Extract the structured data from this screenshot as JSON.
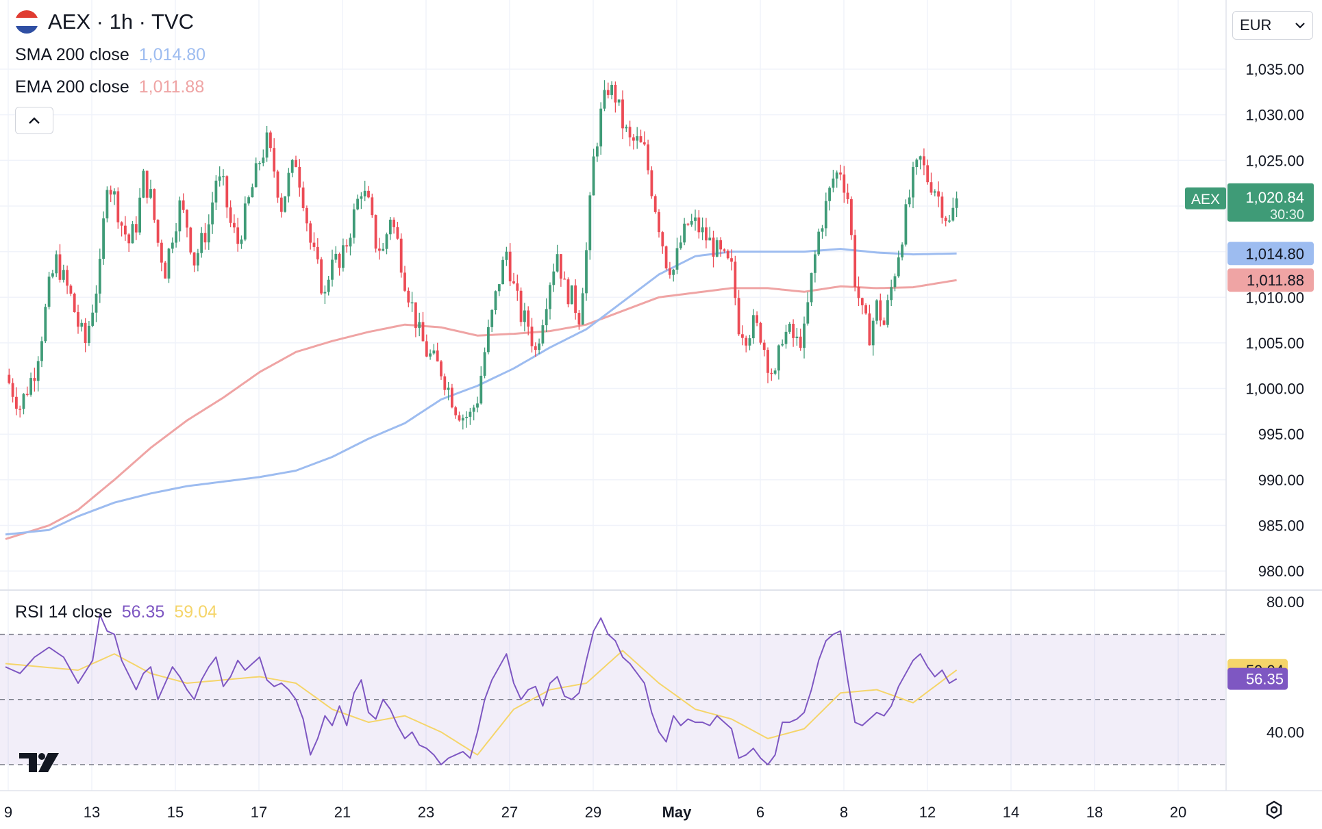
{
  "header": {
    "symbol_title": "AEX · 1h · TVC",
    "flag_colors": [
      "#e03c31",
      "#ffffff",
      "#2f4fa3"
    ],
    "sma": {
      "label": "SMA 200 close",
      "value": "1,014.80",
      "color": "#9dbcf0"
    },
    "ema": {
      "label": "EMA 200 close",
      "value": "1,011.88",
      "color": "#efa4a4"
    },
    "collapse_icon": "chevron-up-icon"
  },
  "currency": {
    "value": "EUR",
    "icon": "chevron-down-icon"
  },
  "rsi": {
    "label": "RSI 14 close",
    "value": "56.35",
    "ma_value": "59.04",
    "color": "#7e57c2",
    "ma_color": "#f5d56a"
  },
  "price_badges": {
    "symbol": "AEX",
    "last": "1,020.84",
    "countdown": "30:30",
    "sma": "1,014.80",
    "ema": "1,011.88",
    "up_color": "#3f9b77",
    "down_color": "#ec4b55"
  },
  "logo": "tradingview-logo",
  "settings_icon": "settings-gear-icon",
  "chart_data": [
    {
      "type": "candlestick",
      "title": "AEX · 1h · TVC",
      "y_ticks": [
        "1,035.00",
        "1,030.00",
        "1,025.00",
        "1,020.00",
        "1,015.00",
        "1,010.00",
        "1,005.00",
        "1,000.00",
        "995.00",
        "990.00",
        "985.00",
        "980.00"
      ],
      "ylim": [
        979,
        1036.5
      ],
      "x_ticks": [
        "9",
        "13",
        "15",
        "17",
        "21",
        "23",
        "27",
        "29",
        "May",
        "6",
        "8",
        "12",
        "14",
        "18",
        "20"
      ],
      "close_path": [
        [
          0,
          1001.5
        ],
        [
          4,
          998
        ],
        [
          8,
          1002
        ],
        [
          10,
          1006
        ],
        [
          12,
          1011
        ],
        [
          14,
          1014
        ],
        [
          16,
          1012
        ],
        [
          18,
          1010
        ],
        [
          20,
          1007
        ],
        [
          22,
          1005
        ],
        [
          24,
          1009
        ],
        [
          26,
          1013
        ],
        [
          28,
          1023
        ],
        [
          30,
          1021
        ],
        [
          32,
          1018
        ],
        [
          34,
          1016
        ],
        [
          36,
          1018
        ],
        [
          38,
          1023
        ],
        [
          40,
          1021
        ],
        [
          42,
          1016
        ],
        [
          44,
          1013
        ],
        [
          46,
          1017
        ],
        [
          48,
          1020
        ],
        [
          50,
          1018
        ],
        [
          52,
          1014
        ],
        [
          54,
          1016
        ],
        [
          56,
          1018
        ],
        [
          58,
          1023
        ],
        [
          60,
          1022
        ],
        [
          62,
          1018
        ],
        [
          64,
          1016
        ],
        [
          66,
          1019
        ],
        [
          68,
          1022
        ],
        [
          70,
          1025
        ],
        [
          72,
          1027
        ],
        [
          74,
          1024
        ],
        [
          76,
          1020
        ],
        [
          78,
          1023
        ],
        [
          80,
          1025
        ],
        [
          82,
          1021
        ],
        [
          84,
          1016
        ],
        [
          86,
          1013
        ],
        [
          88,
          1010
        ],
        [
          90,
          1015
        ],
        [
          92,
          1013
        ],
        [
          94,
          1016
        ],
        [
          96,
          1019
        ],
        [
          98,
          1022
        ],
        [
          100,
          1020
        ],
        [
          102,
          1016
        ],
        [
          104,
          1015
        ],
        [
          106,
          1019
        ],
        [
          108,
          1016
        ],
        [
          110,
          1012
        ],
        [
          112,
          1009
        ],
        [
          114,
          1006
        ],
        [
          116,
          1004
        ],
        [
          118,
          1003
        ],
        [
          120,
          1002
        ],
        [
          122,
          1000
        ],
        [
          124,
          998
        ],
        [
          126,
          997
        ],
        [
          128,
          997
        ],
        [
          130,
          999
        ],
        [
          132,
          1004
        ],
        [
          134,
          1008
        ],
        [
          136,
          1012
        ],
        [
          138,
          1015
        ],
        [
          140,
          1011
        ],
        [
          142,
          1008
        ],
        [
          144,
          1007
        ],
        [
          146,
          1004
        ],
        [
          148,
          1008
        ],
        [
          150,
          1012
        ],
        [
          152,
          1015
        ],
        [
          154,
          1011
        ],
        [
          156,
          1010
        ],
        [
          158,
          1008
        ],
        [
          160,
          1015
        ],
        [
          162,
          1025
        ],
        [
          164,
          1030
        ],
        [
          166,
          1033
        ],
        [
          168,
          1032
        ],
        [
          170,
          1029
        ],
        [
          172,
          1027
        ],
        [
          174,
          1027
        ],
        [
          176,
          1026
        ],
        [
          178,
          1022
        ],
        [
          180,
          1018
        ],
        [
          182,
          1014
        ],
        [
          184,
          1013
        ],
        [
          186,
          1016
        ],
        [
          188,
          1018
        ],
        [
          190,
          1018
        ],
        [
          192,
          1017
        ],
        [
          194,
          1016
        ],
        [
          196,
          1015
        ],
        [
          198,
          1014
        ],
        [
          200,
          1013
        ],
        [
          202,
          1007
        ],
        [
          204,
          1006
        ],
        [
          206,
          1007
        ],
        [
          208,
          1006
        ],
        [
          210,
          1003
        ],
        [
          212,
          1001
        ],
        [
          214,
          1006
        ],
        [
          216,
          1006
        ],
        [
          218,
          1005
        ],
        [
          220,
          1006
        ],
        [
          222,
          1012
        ],
        [
          224,
          1017
        ],
        [
          226,
          1020
        ],
        [
          228,
          1023
        ],
        [
          230,
          1024
        ],
        [
          232,
          1021
        ],
        [
          234,
          1012
        ],
        [
          236,
          1008
        ],
        [
          238,
          1006
        ],
        [
          240,
          1009
        ],
        [
          242,
          1007
        ],
        [
          244,
          1011
        ],
        [
          246,
          1015
        ],
        [
          248,
          1019
        ],
        [
          250,
          1023
        ],
        [
          252,
          1025
        ],
        [
          254,
          1023
        ],
        [
          256,
          1022
        ],
        [
          258,
          1020
        ],
        [
          260,
          1018
        ],
        [
          262,
          1020.84
        ]
      ],
      "sma_200": [
        [
          0,
          984
        ],
        [
          12,
          984.5
        ],
        [
          20,
          986
        ],
        [
          30,
          987.5
        ],
        [
          40,
          988.5
        ],
        [
          50,
          989.3
        ],
        [
          60,
          989.8
        ],
        [
          70,
          990.3
        ],
        [
          80,
          991
        ],
        [
          90,
          992.5
        ],
        [
          100,
          994.5
        ],
        [
          110,
          996.2
        ],
        [
          120,
          998.8
        ],
        [
          130,
          1000.3
        ],
        [
          140,
          1002.2
        ],
        [
          150,
          1004.5
        ],
        [
          160,
          1006.5
        ],
        [
          170,
          1009.5
        ],
        [
          180,
          1012.5
        ],
        [
          190,
          1014.5
        ],
        [
          200,
          1015
        ],
        [
          210,
          1015
        ],
        [
          220,
          1015
        ],
        [
          230,
          1015.3
        ],
        [
          240,
          1014.9
        ],
        [
          250,
          1014.7
        ],
        [
          262,
          1014.8
        ]
      ],
      "ema_200": [
        [
          0,
          983.5
        ],
        [
          12,
          985
        ],
        [
          20,
          986.7
        ],
        [
          30,
          990
        ],
        [
          40,
          993.5
        ],
        [
          50,
          996.5
        ],
        [
          60,
          999
        ],
        [
          70,
          1001.8
        ],
        [
          80,
          1004
        ],
        [
          90,
          1005.2
        ],
        [
          100,
          1006.2
        ],
        [
          110,
          1007
        ],
        [
          120,
          1006.7
        ],
        [
          130,
          1005.8
        ],
        [
          140,
          1006
        ],
        [
          150,
          1006.3
        ],
        [
          160,
          1007
        ],
        [
          170,
          1008.5
        ],
        [
          180,
          1010
        ],
        [
          190,
          1010.5
        ],
        [
          200,
          1011
        ],
        [
          210,
          1011
        ],
        [
          220,
          1010.6
        ],
        [
          230,
          1011.2
        ],
        [
          240,
          1011
        ],
        [
          250,
          1011.1
        ],
        [
          262,
          1011.88
        ]
      ]
    },
    {
      "type": "line",
      "title": "RSI 14 close",
      "y_ticks": [
        "80.00",
        "40.00"
      ],
      "ylim": [
        25,
        80
      ],
      "band": [
        30,
        70
      ],
      "midline": 50,
      "rsi_14": [
        [
          0,
          60
        ],
        [
          4,
          58
        ],
        [
          8,
          63
        ],
        [
          12,
          66
        ],
        [
          16,
          63
        ],
        [
          20,
          55
        ],
        [
          24,
          62
        ],
        [
          26,
          76
        ],
        [
          28,
          71
        ],
        [
          30,
          70
        ],
        [
          32,
          62
        ],
        [
          36,
          53
        ],
        [
          38,
          58
        ],
        [
          40,
          60
        ],
        [
          42,
          50
        ],
        [
          44,
          55
        ],
        [
          46,
          60
        ],
        [
          48,
          57
        ],
        [
          50,
          53
        ],
        [
          52,
          50
        ],
        [
          54,
          56
        ],
        [
          56,
          60
        ],
        [
          58,
          63
        ],
        [
          60,
          54
        ],
        [
          62,
          57
        ],
        [
          64,
          62
        ],
        [
          66,
          59
        ],
        [
          68,
          61
        ],
        [
          70,
          63
        ],
        [
          72,
          56
        ],
        [
          74,
          54
        ],
        [
          76,
          55
        ],
        [
          78,
          53
        ],
        [
          80,
          50
        ],
        [
          82,
          44
        ],
        [
          84,
          33
        ],
        [
          86,
          38
        ],
        [
          88,
          45
        ],
        [
          90,
          42
        ],
        [
          92,
          48
        ],
        [
          94,
          42
        ],
        [
          96,
          52
        ],
        [
          98,
          56
        ],
        [
          100,
          46
        ],
        [
          102,
          44
        ],
        [
          104,
          50
        ],
        [
          106,
          47
        ],
        [
          108,
          42
        ],
        [
          110,
          38
        ],
        [
          112,
          40
        ],
        [
          114,
          36
        ],
        [
          116,
          35
        ],
        [
          118,
          33
        ],
        [
          120,
          30
        ],
        [
          122,
          32
        ],
        [
          124,
          33
        ],
        [
          126,
          34
        ],
        [
          128,
          32
        ],
        [
          130,
          40
        ],
        [
          132,
          50
        ],
        [
          134,
          56
        ],
        [
          136,
          60
        ],
        [
          138,
          64
        ],
        [
          140,
          55
        ],
        [
          142,
          50
        ],
        [
          144,
          53
        ],
        [
          146,
          54
        ],
        [
          148,
          48
        ],
        [
          150,
          55
        ],
        [
          152,
          57
        ],
        [
          154,
          51
        ],
        [
          156,
          50
        ],
        [
          158,
          52
        ],
        [
          160,
          62
        ],
        [
          162,
          71
        ],
        [
          164,
          75
        ],
        [
          166,
          70
        ],
        [
          168,
          68
        ],
        [
          170,
          63
        ],
        [
          172,
          61
        ],
        [
          174,
          58
        ],
        [
          176,
          55
        ],
        [
          178,
          46
        ],
        [
          180,
          40
        ],
        [
          182,
          37
        ],
        [
          184,
          45
        ],
        [
          186,
          42
        ],
        [
          188,
          44
        ],
        [
          190,
          43
        ],
        [
          192,
          43
        ],
        [
          194,
          42
        ],
        [
          196,
          45
        ],
        [
          198,
          43
        ],
        [
          200,
          41
        ],
        [
          202,
          32
        ],
        [
          204,
          33
        ],
        [
          206,
          35
        ],
        [
          208,
          32
        ],
        [
          210,
          30
        ],
        [
          212,
          33
        ],
        [
          214,
          43
        ],
        [
          216,
          43
        ],
        [
          218,
          44
        ],
        [
          220,
          46
        ],
        [
          222,
          53
        ],
        [
          224,
          62
        ],
        [
          226,
          68
        ],
        [
          228,
          70
        ],
        [
          230,
          71
        ],
        [
          232,
          56
        ],
        [
          234,
          43
        ],
        [
          236,
          42
        ],
        [
          238,
          44
        ],
        [
          240,
          46
        ],
        [
          242,
          45
        ],
        [
          244,
          48
        ],
        [
          246,
          54
        ],
        [
          248,
          58
        ],
        [
          250,
          62
        ],
        [
          252,
          64
        ],
        [
          254,
          60
        ],
        [
          256,
          57
        ],
        [
          258,
          59
        ],
        [
          260,
          55
        ],
        [
          262,
          56.35
        ]
      ],
      "rsi_ma": [
        [
          0,
          61
        ],
        [
          10,
          60
        ],
        [
          20,
          59
        ],
        [
          30,
          64
        ],
        [
          40,
          58
        ],
        [
          50,
          55
        ],
        [
          60,
          56
        ],
        [
          70,
          57
        ],
        [
          80,
          55
        ],
        [
          90,
          47
        ],
        [
          100,
          43
        ],
        [
          110,
          45
        ],
        [
          120,
          40
        ],
        [
          130,
          33
        ],
        [
          140,
          47
        ],
        [
          150,
          53
        ],
        [
          160,
          55
        ],
        [
          170,
          65
        ],
        [
          180,
          55
        ],
        [
          190,
          47
        ],
        [
          200,
          44
        ],
        [
          210,
          38
        ],
        [
          220,
          41
        ],
        [
          230,
          52
        ],
        [
          240,
          53
        ],
        [
          250,
          49
        ],
        [
          262,
          59.04
        ]
      ]
    }
  ]
}
